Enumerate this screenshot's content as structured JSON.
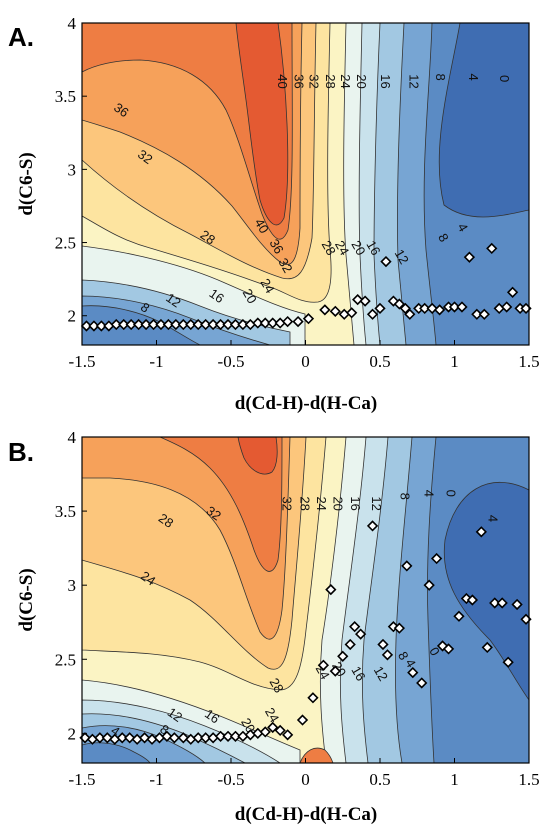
{
  "chart_data": [
    {
      "type": "contour",
      "panel_label": "A.",
      "xlabel": "d(Cd-H)-d(H-Ca)",
      "ylabel": "d(C6-S)",
      "xlim": [
        -1.5,
        1.5
      ],
      "ylim": [
        1.8,
        4.0
      ],
      "x_ticks": [
        "-1.5",
        "-1",
        "-0.5",
        "0",
        "0.5",
        "1",
        "1.5"
      ],
      "y_ticks": [
        "2",
        "2.5",
        "3",
        "3.5",
        "4"
      ],
      "contour_labels": [
        {
          "text": "40",
          "x": -0.16,
          "y": 3.6
        },
        {
          "text": "36",
          "x": -0.05,
          "y": 3.6
        },
        {
          "text": "32",
          "x": 0.05,
          "y": 3.6
        },
        {
          "text": "28",
          "x": 0.16,
          "y": 3.6
        },
        {
          "text": "24",
          "x": 0.26,
          "y": 3.6
        },
        {
          "text": "20",
          "x": 0.37,
          "y": 3.6
        },
        {
          "text": "16",
          "x": 0.53,
          "y": 3.6
        },
        {
          "text": "12",
          "x": 0.72,
          "y": 3.6
        },
        {
          "text": "8",
          "x": 0.9,
          "y": 3.63
        },
        {
          "text": "4",
          "x": 1.12,
          "y": 3.63
        },
        {
          "text": "0",
          "x": 1.33,
          "y": 3.62
        },
        {
          "text": "36",
          "x": -1.24,
          "y": 3.4
        },
        {
          "text": "32",
          "x": -1.08,
          "y": 3.08
        },
        {
          "text": "40",
          "x": -0.3,
          "y": 2.61
        },
        {
          "text": "28",
          "x": -0.66,
          "y": 2.53
        },
        {
          "text": "36",
          "x": -0.2,
          "y": 2.47
        },
        {
          "text": "32",
          "x": -0.14,
          "y": 2.34
        },
        {
          "text": "28",
          "x": 0.15,
          "y": 2.46
        },
        {
          "text": "24",
          "x": 0.24,
          "y": 2.46
        },
        {
          "text": "20",
          "x": 0.35,
          "y": 2.46
        },
        {
          "text": "16",
          "x": 0.45,
          "y": 2.46
        },
        {
          "text": "12",
          "x": 0.64,
          "y": 2.4
        },
        {
          "text": "8",
          "x": 0.92,
          "y": 2.53
        },
        {
          "text": "4",
          "x": 1.05,
          "y": 2.6
        },
        {
          "text": "24",
          "x": -0.26,
          "y": 2.2
        },
        {
          "text": "20",
          "x": -0.38,
          "y": 2.13
        },
        {
          "text": "16",
          "x": -0.6,
          "y": 2.13
        },
        {
          "text": "12",
          "x": -0.89,
          "y": 2.1
        },
        {
          "text": "8",
          "x": -1.08,
          "y": 2.05
        }
      ],
      "points": [
        [
          -1.47,
          1.93
        ],
        [
          -1.42,
          1.93
        ],
        [
          -1.37,
          1.93
        ],
        [
          -1.32,
          1.93
        ],
        [
          -1.27,
          1.94
        ],
        [
          -1.22,
          1.94
        ],
        [
          -1.17,
          1.94
        ],
        [
          -1.12,
          1.94
        ],
        [
          -1.07,
          1.94
        ],
        [
          -1.02,
          1.94
        ],
        [
          -0.97,
          1.94
        ],
        [
          -0.92,
          1.94
        ],
        [
          -0.87,
          1.94
        ],
        [
          -0.82,
          1.94
        ],
        [
          -0.77,
          1.94
        ],
        [
          -0.72,
          1.94
        ],
        [
          -0.67,
          1.94
        ],
        [
          -0.62,
          1.94
        ],
        [
          -0.57,
          1.94
        ],
        [
          -0.52,
          1.94
        ],
        [
          -0.47,
          1.94
        ],
        [
          -0.42,
          1.94
        ],
        [
          -0.37,
          1.94
        ],
        [
          -0.32,
          1.95
        ],
        [
          -0.27,
          1.95
        ],
        [
          -0.22,
          1.95
        ],
        [
          -0.17,
          1.95
        ],
        [
          -0.12,
          1.96
        ],
        [
          -0.05,
          1.96
        ],
        [
          0.02,
          1.98
        ],
        [
          0.13,
          2.04
        ],
        [
          0.2,
          2.03
        ],
        [
          0.26,
          2.01
        ],
        [
          0.31,
          2.02
        ],
        [
          0.35,
          2.11
        ],
        [
          0.4,
          2.1
        ],
        [
          0.45,
          2.01
        ],
        [
          0.5,
          2.05
        ],
        [
          0.54,
          2.37
        ],
        [
          0.59,
          2.1
        ],
        [
          0.63,
          2.08
        ],
        [
          0.67,
          2.05
        ],
        [
          0.7,
          2.01
        ],
        [
          0.76,
          2.05
        ],
        [
          0.8,
          2.05
        ],
        [
          0.85,
          2.05
        ],
        [
          0.9,
          2.04
        ],
        [
          0.96,
          2.06
        ],
        [
          1.0,
          2.06
        ],
        [
          1.05,
          2.06
        ],
        [
          1.1,
          2.4
        ],
        [
          1.15,
          2.01
        ],
        [
          1.2,
          2.01
        ],
        [
          1.25,
          2.46
        ],
        [
          1.3,
          2.05
        ],
        [
          1.35,
          2.06
        ],
        [
          1.39,
          2.16
        ],
        [
          1.44,
          2.05
        ],
        [
          1.48,
          2.05
        ]
      ]
    },
    {
      "type": "contour",
      "panel_label": "B.",
      "xlabel": "d(Cd-H)-d(H-Ca)",
      "ylabel": "d(C6-S)",
      "xlim": [
        -1.5,
        1.5
      ],
      "ylim": [
        1.8,
        4.0
      ],
      "x_ticks": [
        "-1.5",
        "-1",
        "-0.5",
        "0",
        "0.5",
        "1",
        "1.5"
      ],
      "y_ticks": [
        "2",
        "2.5",
        "3",
        "3.5",
        "4"
      ],
      "contour_labels": [
        {
          "text": "32",
          "x": -0.13,
          "y": 3.55
        },
        {
          "text": "28",
          "x": -0.01,
          "y": 3.55
        },
        {
          "text": "24",
          "x": 0.1,
          "y": 3.55
        },
        {
          "text": "20",
          "x": 0.21,
          "y": 3.55
        },
        {
          "text": "16",
          "x": 0.33,
          "y": 3.55
        },
        {
          "text": "12",
          "x": 0.47,
          "y": 3.55
        },
        {
          "text": "8",
          "x": 0.66,
          "y": 3.6
        },
        {
          "text": "4",
          "x": 0.82,
          "y": 3.62
        },
        {
          "text": "0",
          "x": 0.97,
          "y": 3.62
        },
        {
          "text": "4",
          "x": 1.25,
          "y": 3.45
        },
        {
          "text": "32",
          "x": -0.62,
          "y": 3.48
        },
        {
          "text": "28",
          "x": -0.94,
          "y": 3.43
        },
        {
          "text": "24",
          "x": -1.06,
          "y": 3.04
        },
        {
          "text": "28",
          "x": -0.2,
          "y": 2.32
        },
        {
          "text": "24",
          "x": 0.11,
          "y": 2.41
        },
        {
          "text": "20",
          "x": 0.22,
          "y": 2.43
        },
        {
          "text": "16",
          "x": 0.35,
          "y": 2.4
        },
        {
          "text": "12",
          "x": 0.5,
          "y": 2.4
        },
        {
          "text": "8",
          "x": 0.65,
          "y": 2.52
        },
        {
          "text": "4",
          "x": 0.7,
          "y": 2.47
        },
        {
          "text": "0",
          "x": 0.86,
          "y": 2.55
        },
        {
          "text": "24",
          "x": -0.23,
          "y": 2.12
        },
        {
          "text": "20",
          "x": -0.39,
          "y": 2.05
        },
        {
          "text": "16",
          "x": -0.63,
          "y": 2.11
        },
        {
          "text": "12",
          "x": -0.88,
          "y": 2.12
        },
        {
          "text": "8",
          "x": -0.95,
          "y": 2.02
        },
        {
          "text": "4",
          "x": -1.28,
          "y": 2.01
        }
      ],
      "points": [
        [
          -1.48,
          1.97
        ],
        [
          -1.43,
          1.96
        ],
        [
          -1.38,
          1.97
        ],
        [
          -1.33,
          1.97
        ],
        [
          -1.28,
          1.96
        ],
        [
          -1.23,
          1.97
        ],
        [
          -1.18,
          1.97
        ],
        [
          -1.13,
          1.96
        ],
        [
          -1.08,
          1.97
        ],
        [
          -1.03,
          1.96
        ],
        [
          -0.98,
          1.97
        ],
        [
          -0.93,
          1.98
        ],
        [
          -0.88,
          1.97
        ],
        [
          -0.82,
          1.97
        ],
        [
          -0.77,
          1.96
        ],
        [
          -0.72,
          1.97
        ],
        [
          -0.67,
          1.97
        ],
        [
          -0.62,
          1.97
        ],
        [
          -0.57,
          1.98
        ],
        [
          -0.52,
          1.98
        ],
        [
          -0.47,
          1.98
        ],
        [
          -0.42,
          1.98
        ],
        [
          -0.37,
          1.99
        ],
        [
          -0.32,
          2.0
        ],
        [
          -0.27,
          2.01
        ],
        [
          -0.22,
          2.04
        ],
        [
          -0.17,
          2.02
        ],
        [
          -0.12,
          1.99
        ],
        [
          -0.02,
          2.09
        ],
        [
          0.05,
          2.24
        ],
        [
          0.12,
          2.46
        ],
        [
          0.17,
          2.97
        ],
        [
          0.2,
          2.42
        ],
        [
          0.25,
          2.52
        ],
        [
          0.3,
          2.6
        ],
        [
          0.33,
          2.72
        ],
        [
          0.37,
          2.67
        ],
        [
          0.45,
          3.4
        ],
        [
          0.52,
          2.6
        ],
        [
          0.55,
          2.53
        ],
        [
          0.59,
          2.72
        ],
        [
          0.63,
          2.71
        ],
        [
          0.68,
          3.13
        ],
        [
          0.72,
          2.41
        ],
        [
          0.78,
          2.34
        ],
        [
          0.83,
          3.0
        ],
        [
          0.88,
          3.18
        ],
        [
          0.92,
          2.59
        ],
        [
          0.96,
          2.57
        ],
        [
          1.03,
          2.79
        ],
        [
          1.08,
          2.91
        ],
        [
          1.12,
          2.9
        ],
        [
          1.18,
          3.36
        ],
        [
          1.22,
          2.58
        ],
        [
          1.27,
          2.88
        ],
        [
          1.32,
          2.88
        ],
        [
          1.36,
          2.48
        ],
        [
          1.42,
          2.87
        ],
        [
          1.48,
          2.77
        ]
      ]
    }
  ]
}
